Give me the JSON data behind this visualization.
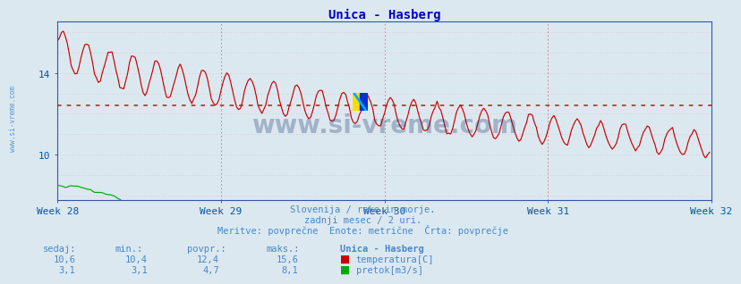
{
  "title": "Unica - Hasberg",
  "bg_color": "#dce8f0",
  "plot_bg_color": "#dce8f0",
  "title_color": "#0000cc",
  "axis_color": "#0055aa",
  "grid_color_v": "#cc4444",
  "grid_color_h": "#cc8888",
  "temp_color": "#cc0000",
  "flow_color": "#00aa00",
  "avg_temp_color": "#cc0000",
  "avg_flow_color": "#00aa00",
  "text_color": "#4488cc",
  "week_labels": [
    "Week 28",
    "Week 29",
    "Week 30",
    "Week 31",
    "Week 32"
  ],
  "ytick_labels": [
    "10",
    "14"
  ],
  "ytick_vals": [
    10,
    14
  ],
  "ymin": 7.8,
  "ymax": 16.5,
  "xmin": 0,
  "xmax": 335,
  "avg_temp": 12.4,
  "avg_flow": 4.7,
  "sedaj_temp": "10,6",
  "min_temp": "10,4",
  "povpr_temp": "12,4",
  "maks_temp": "15,6",
  "sedaj_flow": "3,1",
  "min_flow": "3,1",
  "povpr_flow": "4,7",
  "maks_flow": "8,1",
  "watermark": "www.si-vreme.com",
  "subtitle1": "Slovenija / reke in morje.",
  "subtitle2": "zadnji mesec / 2 uri.",
  "subtitle3": "Meritve: povprečne  Enote: metrične  Črta: povprečje",
  "legend_title": "Unica - Hasberg",
  "label_temp": "temperatura[C]",
  "label_flow": "pretok[m3/s]"
}
